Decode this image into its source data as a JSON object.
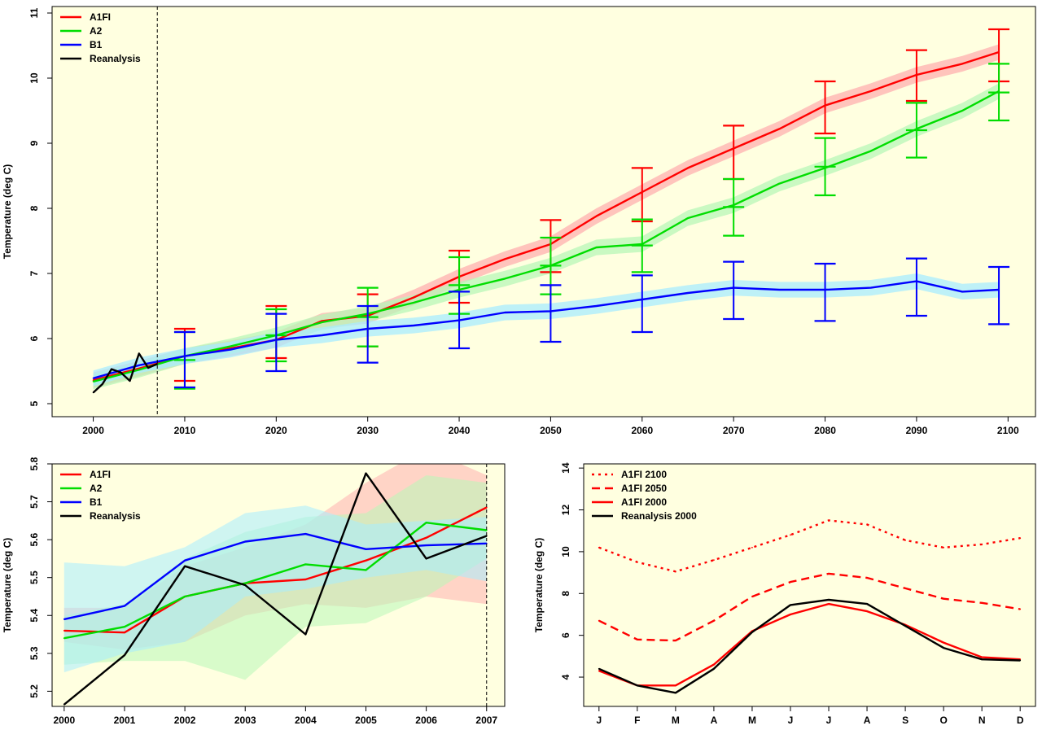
{
  "colors": {
    "A1FI": "#ff0000",
    "A2": "#00dd00",
    "B1": "#0000ff",
    "Reanalysis": "#000000",
    "A1FI_band": "#ffb0b0",
    "A2_band": "#b8f7b8",
    "B1_band": "#a8ecff",
    "panel_bg": "#ffffe0"
  },
  "chart_data": [
    {
      "type": "line",
      "ylabel": "Temperature (deg C)",
      "xlabel": "",
      "xlim": [
        1995.5,
        2103
      ],
      "ylim": [
        4.8,
        11.1
      ],
      "xticks": [
        "2000",
        "2010",
        "2020",
        "2030",
        "2040",
        "2050",
        "2060",
        "2070",
        "2080",
        "2090",
        "2100"
      ],
      "xtick_values": [
        2000,
        2010,
        2020,
        2030,
        2040,
        2050,
        2060,
        2070,
        2080,
        2090,
        2100
      ],
      "yticks": [
        "5",
        "6",
        "7",
        "8",
        "9",
        "10",
        "11"
      ],
      "ytick_values": [
        5,
        6,
        7,
        8,
        9,
        10,
        11
      ],
      "vline": 2007,
      "legend": [
        "A1FI",
        "A2",
        "B1",
        "Reanalysis"
      ],
      "legend_position": "top-left",
      "series": [
        {
          "name": "A1FI",
          "key": "A1FI",
          "x": [
            2000,
            2005,
            2010,
            2015,
            2020,
            2025,
            2030,
            2035,
            2040,
            2045,
            2050,
            2055,
            2060,
            2065,
            2070,
            2075,
            2080,
            2085,
            2090,
            2095,
            2099
          ],
          "values": [
            5.36,
            5.54,
            5.73,
            5.85,
            5.98,
            6.27,
            6.35,
            6.63,
            6.95,
            7.22,
            7.45,
            7.88,
            8.25,
            8.62,
            8.92,
            9.22,
            9.58,
            9.8,
            10.05,
            10.22,
            10.4
          ],
          "band": 0.12
        },
        {
          "name": "A2",
          "key": "A2",
          "x": [
            2000,
            2005,
            2010,
            2015,
            2020,
            2025,
            2030,
            2035,
            2040,
            2045,
            2050,
            2055,
            2060,
            2065,
            2070,
            2075,
            2080,
            2085,
            2090,
            2095,
            2099
          ],
          "values": [
            5.34,
            5.52,
            5.73,
            5.88,
            6.05,
            6.25,
            6.38,
            6.55,
            6.75,
            6.92,
            7.12,
            7.4,
            7.45,
            7.85,
            8.05,
            8.38,
            8.62,
            8.88,
            9.22,
            9.5,
            9.8
          ],
          "band": 0.12
        },
        {
          "name": "B1",
          "key": "B1",
          "x": [
            2000,
            2005,
            2010,
            2015,
            2020,
            2025,
            2030,
            2035,
            2040,
            2045,
            2050,
            2055,
            2060,
            2065,
            2070,
            2075,
            2080,
            2085,
            2090,
            2095,
            2099
          ],
          "values": [
            5.39,
            5.59,
            5.73,
            5.83,
            5.98,
            6.05,
            6.15,
            6.2,
            6.28,
            6.4,
            6.42,
            6.5,
            6.6,
            6.7,
            6.78,
            6.75,
            6.75,
            6.78,
            6.88,
            6.72,
            6.75
          ],
          "band": 0.12
        },
        {
          "name": "Reanalysis",
          "key": "Reanalysis",
          "x": [
            2000,
            2001,
            2002,
            2003,
            2004,
            2005,
            2006,
            2007
          ],
          "values": [
            5.17,
            5.3,
            5.53,
            5.48,
            5.35,
            5.77,
            5.55,
            5.61
          ]
        }
      ],
      "error_bars": [
        {
          "key": "A1FI",
          "x": [
            2010,
            2020,
            2030,
            2040,
            2050,
            2060,
            2070,
            2080,
            2090,
            2099
          ],
          "low": [
            5.35,
            5.7,
            5.88,
            6.55,
            7.02,
            7.8,
            8.45,
            9.15,
            9.65,
            9.95
          ],
          "high": [
            6.15,
            6.5,
            6.68,
            7.35,
            7.82,
            8.62,
            9.27,
            9.95,
            10.43,
            10.75
          ]
        },
        {
          "key": "A2",
          "x": [
            2010,
            2020,
            2030,
            2040,
            2050,
            2060,
            2070,
            2080,
            2090,
            2099
          ],
          "low": [
            5.23,
            5.65,
            5.88,
            6.38,
            6.68,
            7.02,
            7.58,
            8.2,
            8.78,
            9.35
          ],
          "high": [
            6.1,
            6.45,
            6.78,
            7.25,
            7.55,
            7.83,
            8.45,
            9.08,
            9.62,
            10.22
          ],
          "center": [
            5.67,
            6.05,
            6.33,
            6.82,
            7.12,
            7.43,
            8.02,
            8.64,
            9.2,
            9.78
          ]
        },
        {
          "key": "B1",
          "x": [
            2010,
            2020,
            2030,
            2040,
            2050,
            2060,
            2070,
            2080,
            2090,
            2099
          ],
          "low": [
            5.25,
            5.5,
            5.63,
            5.85,
            5.95,
            6.1,
            6.3,
            6.27,
            6.35,
            6.22
          ],
          "high": [
            6.1,
            6.38,
            6.5,
            6.72,
            6.82,
            6.97,
            7.18,
            7.15,
            7.23,
            7.1
          ]
        }
      ]
    },
    {
      "type": "line",
      "ylabel": "Temperature (deg C)",
      "xlabel": "",
      "xlim": [
        1999.8,
        2007.3
      ],
      "ylim": [
        5.16,
        5.8
      ],
      "xticks": [
        "2000",
        "2001",
        "2002",
        "2003",
        "2004",
        "2005",
        "2006",
        "2007"
      ],
      "xtick_values": [
        2000,
        2001,
        2002,
        2003,
        2004,
        2005,
        2006,
        2007
      ],
      "yticks": [
        "5.2",
        "5.3",
        "5.4",
        "5.5",
        "5.6",
        "5.7",
        "5.8"
      ],
      "ytick_values": [
        5.2,
        5.3,
        5.4,
        5.5,
        5.6,
        5.7,
        5.8
      ],
      "vline": 2007,
      "legend": [
        "A1FI",
        "A2",
        "B1",
        "Reanalysis"
      ],
      "legend_position": "top-left",
      "series": [
        {
          "name": "A1FI",
          "key": "A1FI",
          "x": [
            2000,
            2001,
            2002,
            2003,
            2004,
            2005,
            2006,
            2007
          ],
          "values": [
            5.36,
            5.355,
            5.45,
            5.485,
            5.495,
            5.545,
            5.605,
            5.685
          ],
          "lo": [
            5.33,
            5.31,
            5.33,
            5.4,
            5.43,
            5.42,
            5.45,
            5.43
          ],
          "hi": [
            5.42,
            5.42,
            5.53,
            5.58,
            5.64,
            5.75,
            5.84,
            5.77
          ]
        },
        {
          "name": "A2",
          "key": "A2",
          "x": [
            2000,
            2001,
            2002,
            2003,
            2004,
            2005,
            2006,
            2007
          ],
          "values": [
            5.34,
            5.37,
            5.45,
            5.485,
            5.535,
            5.52,
            5.645,
            5.625
          ],
          "lo": [
            5.27,
            5.28,
            5.28,
            5.23,
            5.37,
            5.38,
            5.45,
            5.55
          ],
          "hi": [
            5.4,
            5.43,
            5.55,
            5.62,
            5.66,
            5.67,
            5.77,
            5.75
          ]
        },
        {
          "name": "B1",
          "key": "B1",
          "x": [
            2000,
            2001,
            2002,
            2003,
            2004,
            2005,
            2006,
            2007
          ],
          "values": [
            5.39,
            5.425,
            5.545,
            5.595,
            5.615,
            5.575,
            5.585,
            5.59
          ],
          "lo": [
            5.25,
            5.3,
            5.33,
            5.45,
            5.47,
            5.5,
            5.52,
            5.49
          ],
          "hi": [
            5.54,
            5.53,
            5.58,
            5.67,
            5.69,
            5.64,
            5.65,
            5.66
          ]
        },
        {
          "name": "Reanalysis",
          "key": "Reanalysis",
          "x": [
            2000,
            2001,
            2002,
            2003,
            2004,
            2005,
            2006,
            2007
          ],
          "values": [
            5.165,
            5.295,
            5.53,
            5.48,
            5.35,
            5.775,
            5.55,
            5.61
          ]
        }
      ]
    },
    {
      "type": "line",
      "ylabel": "Temperature (deg C)",
      "xlabel": "",
      "xlim": [
        0.6,
        12.4
      ],
      "ylim": [
        2.6,
        14.2
      ],
      "xticks": [
        "J",
        "F",
        "M",
        "A",
        "M",
        "J",
        "J",
        "A",
        "S",
        "O",
        "N",
        "D"
      ],
      "xtick_values": [
        1,
        2,
        3,
        4,
        5,
        6,
        7,
        8,
        9,
        10,
        11,
        12
      ],
      "yticks": [
        "4",
        "6",
        "8",
        "10",
        "12",
        "14"
      ],
      "ytick_values": [
        4,
        6,
        8,
        10,
        12,
        14
      ],
      "legend": [
        "A1FI 2100",
        "A1FI 2050",
        "A1FI 2000",
        "Reanalysis 2000"
      ],
      "legend_position": "top-left",
      "series": [
        {
          "name": "A1FI 2100",
          "key": "A1FI",
          "dash": "dot",
          "x": [
            1,
            2,
            3,
            4,
            5,
            6,
            7,
            8,
            9,
            10,
            11,
            12
          ],
          "values": [
            10.2,
            9.5,
            9.05,
            9.6,
            10.2,
            10.8,
            11.5,
            11.3,
            10.55,
            10.2,
            10.35,
            10.65
          ]
        },
        {
          "name": "A1FI 2050",
          "key": "A1FI",
          "dash": "dash",
          "x": [
            1,
            2,
            3,
            4,
            5,
            6,
            7,
            8,
            9,
            10,
            11,
            12
          ],
          "values": [
            6.7,
            5.8,
            5.75,
            6.7,
            7.85,
            8.55,
            8.95,
            8.75,
            8.25,
            7.75,
            7.55,
            7.25
          ]
        },
        {
          "name": "A1FI 2000",
          "key": "A1FI",
          "dash": "solid",
          "x": [
            1,
            2,
            3,
            4,
            5,
            6,
            7,
            8,
            9,
            10,
            11,
            12
          ],
          "values": [
            4.3,
            3.6,
            3.6,
            4.6,
            6.2,
            7.0,
            7.5,
            7.15,
            6.5,
            5.65,
            4.95,
            4.85
          ]
        },
        {
          "name": "Reanalysis 2000",
          "key": "Reanalysis",
          "dash": "solid",
          "x": [
            1,
            2,
            3,
            4,
            5,
            6,
            7,
            8,
            9,
            10,
            11,
            12
          ],
          "values": [
            4.4,
            3.6,
            3.25,
            4.4,
            6.15,
            7.45,
            7.7,
            7.5,
            6.45,
            5.4,
            4.85,
            4.8
          ]
        }
      ]
    }
  ]
}
